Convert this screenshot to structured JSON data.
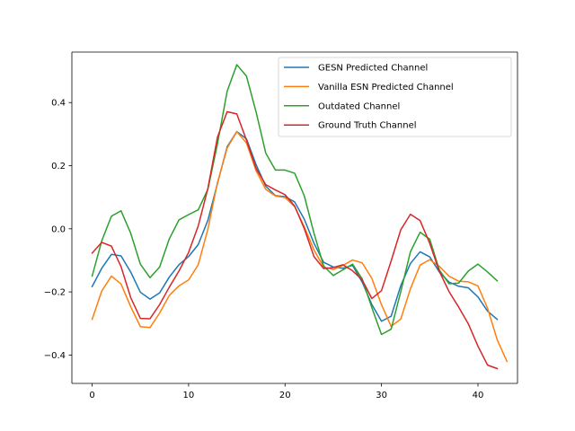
{
  "chart_data": {
    "type": "line",
    "title": "",
    "xlabel": "",
    "ylabel": "",
    "xlim": [
      -2.1,
      44.1
    ],
    "ylim": [
      -0.49,
      0.56
    ],
    "x_ticks": [
      0,
      10,
      20,
      30,
      40
    ],
    "y_ticks": [
      -0.4,
      -0.2,
      0.0,
      0.2,
      0.4
    ],
    "x_tick_labels": [
      "0",
      "10",
      "20",
      "30",
      "40"
    ],
    "y_tick_labels": [
      "−0.4",
      "−0.2",
      "0.0",
      "0.2",
      "0.4"
    ],
    "grid": false,
    "legend_position": "upper right",
    "series": [
      {
        "name": "GESN Predicted Channel",
        "color": "#1f77b4",
        "values": [
          -0.183,
          -0.125,
          -0.081,
          -0.086,
          -0.137,
          -0.201,
          -0.223,
          -0.203,
          -0.153,
          -0.114,
          -0.088,
          -0.05,
          0.027,
          0.144,
          0.26,
          0.308,
          0.285,
          0.203,
          0.135,
          0.105,
          0.102,
          0.085,
          0.03,
          -0.046,
          -0.106,
          -0.121,
          -0.125,
          -0.116,
          -0.169,
          -0.24,
          -0.293,
          -0.277,
          -0.18,
          -0.11,
          -0.073,
          -0.089,
          -0.137,
          -0.169,
          -0.182,
          -0.187,
          -0.216,
          -0.261,
          -0.287
        ]
      },
      {
        "name": "Vanilla ESN Predicted Channel",
        "color": "#ff7f0e",
        "values": [
          -0.287,
          -0.197,
          -0.15,
          -0.175,
          -0.247,
          -0.31,
          -0.313,
          -0.267,
          -0.211,
          -0.181,
          -0.162,
          -0.114,
          -0.001,
          0.147,
          0.256,
          0.308,
          0.272,
          0.184,
          0.125,
          0.104,
          0.099,
          0.07,
          0.006,
          -0.067,
          -0.121,
          -0.129,
          -0.116,
          -0.099,
          -0.108,
          -0.157,
          -0.241,
          -0.309,
          -0.286,
          -0.19,
          -0.115,
          -0.098,
          -0.119,
          -0.15,
          -0.166,
          -0.168,
          -0.181,
          -0.252,
          -0.352,
          -0.42
        ]
      },
      {
        "name": "Outdated Channel",
        "color": "#2ca02c",
        "values": [
          -0.15,
          -0.038,
          0.04,
          0.057,
          -0.014,
          -0.112,
          -0.155,
          -0.121,
          -0.032,
          0.028,
          0.045,
          0.06,
          0.125,
          0.27,
          0.436,
          0.52,
          0.484,
          0.37,
          0.24,
          0.186,
          0.186,
          0.176,
          0.104,
          -0.014,
          -0.118,
          -0.148,
          -0.13,
          -0.112,
          -0.159,
          -0.25,
          -0.335,
          -0.318,
          -0.199,
          -0.073,
          -0.011,
          -0.033,
          -0.131,
          -0.174,
          -0.172,
          -0.134,
          -0.112,
          -0.137,
          -0.165
        ]
      },
      {
        "name": "Ground Truth Channel",
        "color": "#d62728",
        "values": [
          -0.077,
          -0.043,
          -0.055,
          -0.12,
          -0.218,
          -0.284,
          -0.285,
          -0.24,
          -0.185,
          -0.134,
          -0.075,
          0.009,
          0.128,
          0.291,
          0.371,
          0.364,
          0.281,
          0.191,
          0.14,
          0.123,
          0.108,
          0.072,
          0.0,
          -0.088,
          -0.126,
          -0.123,
          -0.114,
          -0.133,
          -0.162,
          -0.221,
          -0.196,
          -0.102,
          -0.003,
          0.046,
          0.026,
          -0.046,
          -0.135,
          -0.199,
          -0.248,
          -0.301,
          -0.372,
          -0.432,
          -0.443
        ]
      }
    ]
  }
}
